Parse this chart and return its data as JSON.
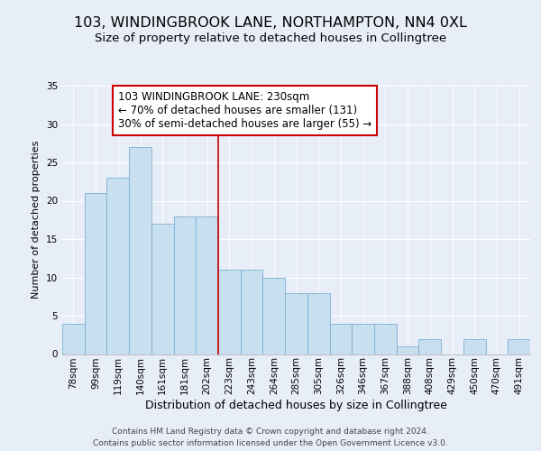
{
  "title": "103, WINDINGBROOK LANE, NORTHAMPTON, NN4 0XL",
  "subtitle": "Size of property relative to detached houses in Collingtree",
  "xlabel": "Distribution of detached houses by size in Collingtree",
  "ylabel": "Number of detached properties",
  "bar_labels": [
    "78sqm",
    "99sqm",
    "119sqm",
    "140sqm",
    "161sqm",
    "181sqm",
    "202sqm",
    "223sqm",
    "243sqm",
    "264sqm",
    "285sqm",
    "305sqm",
    "326sqm",
    "346sqm",
    "367sqm",
    "388sqm",
    "408sqm",
    "429sqm",
    "450sqm",
    "470sqm",
    "491sqm"
  ],
  "bar_heights": [
    4,
    21,
    23,
    27,
    17,
    18,
    18,
    11,
    11,
    10,
    8,
    8,
    4,
    4,
    4,
    1,
    2,
    0,
    2,
    0,
    2
  ],
  "ylim": [
    0,
    35
  ],
  "yticks": [
    0,
    5,
    10,
    15,
    20,
    25,
    30,
    35
  ],
  "bar_color": "#c8dff0",
  "bar_edge_color": "#7bafd4",
  "vline_color": "#cc0000",
  "annotation_text": "103 WINDINGBROOK LANE: 230sqm\n← 70% of detached houses are smaller (131)\n30% of semi-detached houses are larger (55) →",
  "annotation_box_color": "#ffffff",
  "annotation_box_edge_color": "#cc0000",
  "footer_text": "Contains HM Land Registry data © Crown copyright and database right 2024.\nContains public sector information licensed under the Open Government Licence v3.0.",
  "background_color": "#e8eef8",
  "grid_color": "#ffffff",
  "title_fontsize": 11.5,
  "subtitle_fontsize": 9.5,
  "xlabel_fontsize": 9,
  "ylabel_fontsize": 8,
  "tick_fontsize": 7.5,
  "annotation_fontsize": 8.5,
  "footer_fontsize": 6.5
}
